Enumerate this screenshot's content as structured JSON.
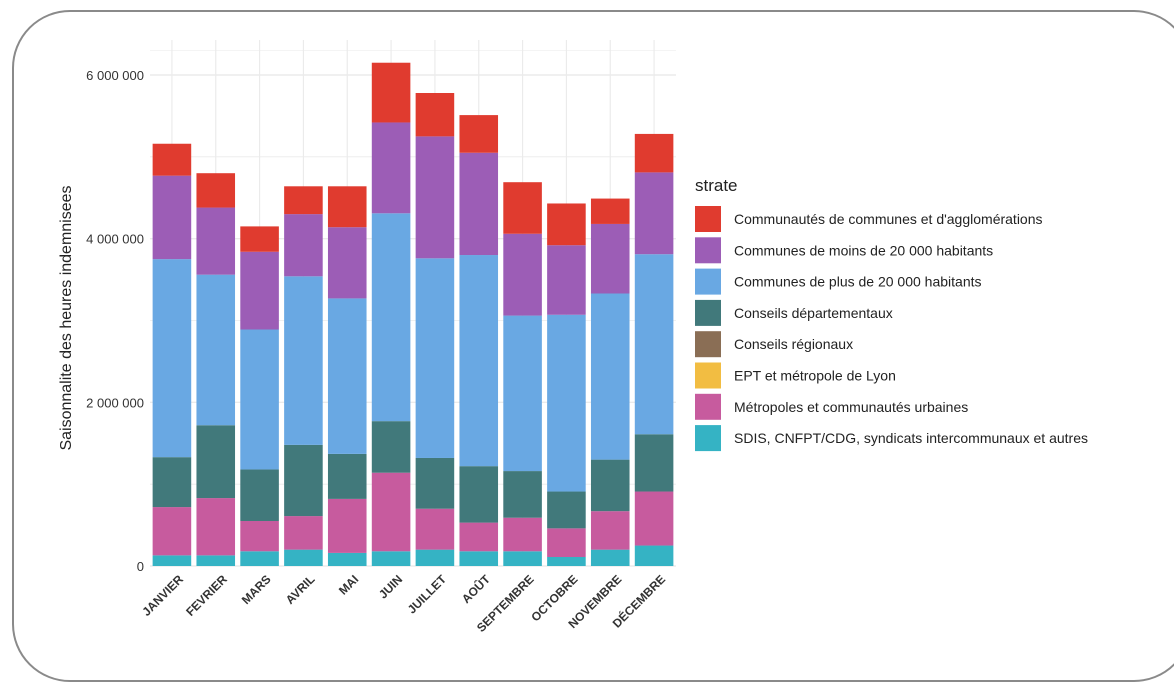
{
  "chart_data": {
    "type": "bar",
    "stacked": true,
    "ylabel": "Saisonnalite des heures indemnisees",
    "xlabel": "",
    "ylim": [
      0,
      6300000
    ],
    "yticks": [
      0,
      2000000,
      4000000,
      6000000
    ],
    "ytick_labels": [
      "0",
      "2 000 000",
      "4 000 000",
      "6 000 000"
    ],
    "grid": true,
    "legend_title": "strate",
    "legend_position": "right",
    "categories": [
      "JANVIER",
      "FEVRIER",
      "MARS",
      "AVRIL",
      "MAI",
      "JUIN",
      "JUILLET",
      "AOÛT",
      "SEPTEMBRE",
      "OCTOBRE",
      "NOVEMBRE",
      "DÉCEMBRE"
    ],
    "series": [
      {
        "name": "SDIS, CNFPT/CDG, syndicats intercommunaux et autres",
        "color": "#35b3c4",
        "values": [
          130000,
          130000,
          180000,
          200000,
          160000,
          180000,
          200000,
          180000,
          180000,
          110000,
          200000,
          250000
        ]
      },
      {
        "name": "Métropoles et communautés urbaines",
        "color": "#c75b9e",
        "values": [
          590000,
          700000,
          370000,
          410000,
          660000,
          960000,
          500000,
          350000,
          410000,
          350000,
          470000,
          660000
        ]
      },
      {
        "name": "EPT et métropole de Lyon",
        "color": "#f2bd42",
        "values": [
          0,
          0,
          0,
          0,
          0,
          0,
          0,
          0,
          0,
          0,
          0,
          0
        ]
      },
      {
        "name": "Conseils régionaux",
        "color": "#8a6e55",
        "values": [
          0,
          0,
          0,
          0,
          0,
          0,
          0,
          0,
          0,
          0,
          0,
          0
        ]
      },
      {
        "name": "Conseils départementaux",
        "color": "#41797b",
        "values": [
          610000,
          890000,
          630000,
          870000,
          550000,
          630000,
          620000,
          690000,
          570000,
          450000,
          630000,
          700000
        ]
      },
      {
        "name": "Communes de plus de 20 000 habitants",
        "color": "#69a8e3",
        "values": [
          2420000,
          1840000,
          1710000,
          2060000,
          1900000,
          2540000,
          2440000,
          2580000,
          1900000,
          2160000,
          2030000,
          2200000
        ]
      },
      {
        "name": "Communes de moins de 20 000 habitants",
        "color": "#9c5db6",
        "values": [
          1020000,
          820000,
          950000,
          760000,
          870000,
          1110000,
          1490000,
          1250000,
          1000000,
          850000,
          850000,
          1000000
        ]
      },
      {
        "name": "Communautés de communes et d'agglomérations",
        "color": "#e03b2f",
        "values": [
          390000,
          420000,
          310000,
          340000,
          500000,
          730000,
          530000,
          460000,
          630000,
          510000,
          310000,
          470000
        ]
      }
    ],
    "legend_order": [
      "Communautés de communes et d'agglomérations",
      "Communes de moins de 20 000 habitants",
      "Communes de plus de 20 000 habitants",
      "Conseils départementaux",
      "Conseils régionaux",
      "EPT et métropole de Lyon",
      "Métropoles et communautés urbaines",
      "SDIS, CNFPT/CDG, syndicats intercommunaux et autres"
    ]
  }
}
